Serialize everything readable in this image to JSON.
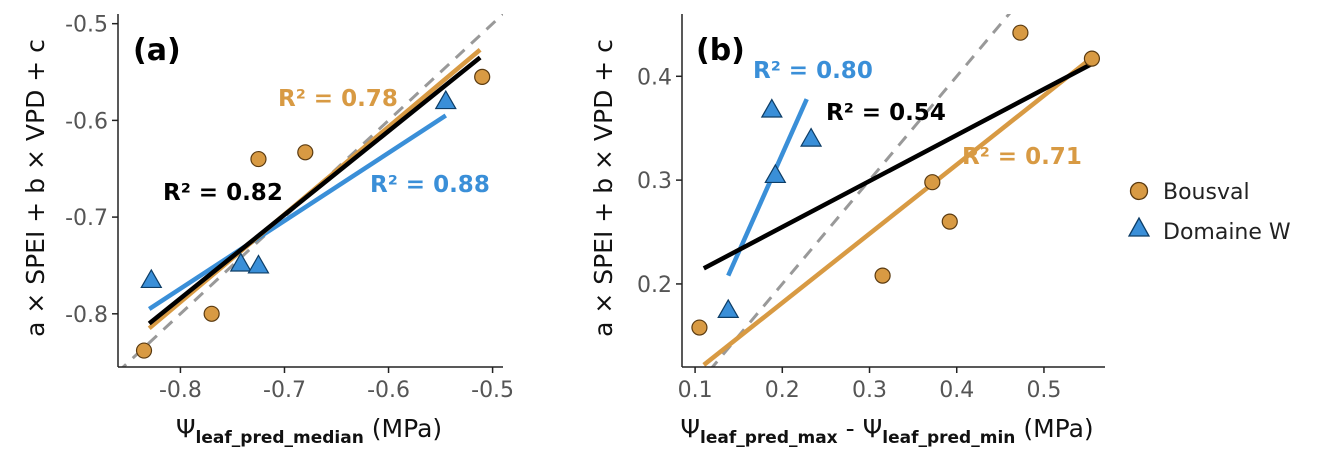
{
  "colors": {
    "bousval": "#d89a43",
    "domaine": "#3a8fd8",
    "overall": "#000000",
    "identity": "#999999"
  },
  "legend": {
    "items": [
      {
        "label": "Bousval",
        "shape": "circle",
        "color": "#d89a43"
      },
      {
        "label": "Domaine W",
        "shape": "triangle",
        "color": "#3a8fd8"
      }
    ]
  },
  "chart_data": [
    {
      "type": "scatter",
      "panel_label": "(a)",
      "ylabel": "a × SPEI + b × VPD + c",
      "xlabel_main": "Ψ",
      "xlabel_sub": "leaf_pred_median",
      "xlabel_unit": " (MPa)",
      "xlim": [
        -0.86,
        -0.49
      ],
      "ylim": [
        -0.855,
        -0.49
      ],
      "xticks": [
        -0.8,
        -0.7,
        -0.6,
        -0.5
      ],
      "xtick_labels": [
        "-0.8",
        "-0.7",
        "-0.6",
        "-0.5"
      ],
      "yticks": [
        -0.8,
        -0.7,
        -0.6,
        -0.5
      ],
      "ytick_labels": [
        "-0.8",
        "-0.7",
        "-0.6",
        "-0.5"
      ],
      "series": [
        {
          "name": "Bousval",
          "shape": "circle",
          "x": [
            -0.835,
            -0.77,
            -0.725,
            -0.68,
            -0.51
          ],
          "y": [
            -0.838,
            -0.8,
            -0.64,
            -0.633,
            -0.555
          ]
        },
        {
          "name": "Domaine W",
          "shape": "triangle",
          "x": [
            -0.828,
            -0.742,
            -0.725,
            -0.545
          ],
          "y": [
            -0.765,
            -0.748,
            -0.75,
            -0.58
          ]
        }
      ],
      "fits": [
        {
          "group": "Bousval",
          "x": [
            -0.83,
            -0.512
          ],
          "y": [
            -0.815,
            -0.527
          ],
          "r2_label": "R² = 0.78"
        },
        {
          "group": "Domaine W",
          "x": [
            -0.83,
            -0.545
          ],
          "y": [
            -0.795,
            -0.595
          ],
          "r2_label": "R² = 0.88"
        },
        {
          "group": "overall",
          "x": [
            -0.83,
            -0.512
          ],
          "y": [
            -0.81,
            -0.535
          ],
          "r2_label": "R² = 0.82"
        }
      ],
      "identity_line": true
    },
    {
      "type": "scatter",
      "panel_label": "(b)",
      "ylabel": "a × SPEI + b × VPD + c",
      "xlabel_main1": "Ψ",
      "xlabel_sub1": "leaf_pred_max",
      "xlabel_mid": " - Ψ",
      "xlabel_sub2": "leaf_pred_min",
      "xlabel_unit": " (MPa)",
      "xlim": [
        0.085,
        0.57
      ],
      "ylim": [
        0.12,
        0.46
      ],
      "xticks": [
        0.1,
        0.2,
        0.3,
        0.4,
        0.5
      ],
      "xtick_labels": [
        "0.1",
        "0.2",
        "0.3",
        "0.4",
        "0.5"
      ],
      "yticks": [
        0.2,
        0.3,
        0.4
      ],
      "ytick_labels": [
        "0.2",
        "0.3",
        "0.4"
      ],
      "series": [
        {
          "name": "Bousval",
          "shape": "circle",
          "x": [
            0.105,
            0.315,
            0.372,
            0.392,
            0.473,
            0.555
          ],
          "y": [
            0.158,
            0.208,
            0.298,
            0.26,
            0.442,
            0.417
          ]
        },
        {
          "name": "Domaine W",
          "shape": "triangle",
          "x": [
            0.138,
            0.188,
            0.192,
            0.233
          ],
          "y": [
            0.175,
            0.368,
            0.305,
            0.34
          ]
        }
      ],
      "fits": [
        {
          "group": "Bousval",
          "x": [
            0.11,
            0.555
          ],
          "y": [
            0.122,
            0.418
          ],
          "r2_label": "R² = 0.71"
        },
        {
          "group": "Domaine W",
          "x": [
            0.138,
            0.228
          ],
          "y": [
            0.208,
            0.378
          ],
          "r2_label": "R² = 0.80"
        },
        {
          "group": "overall",
          "x": [
            0.11,
            0.555
          ],
          "y": [
            0.215,
            0.412
          ],
          "r2_label": "R² = 0.54"
        }
      ],
      "identity_line": true
    }
  ]
}
